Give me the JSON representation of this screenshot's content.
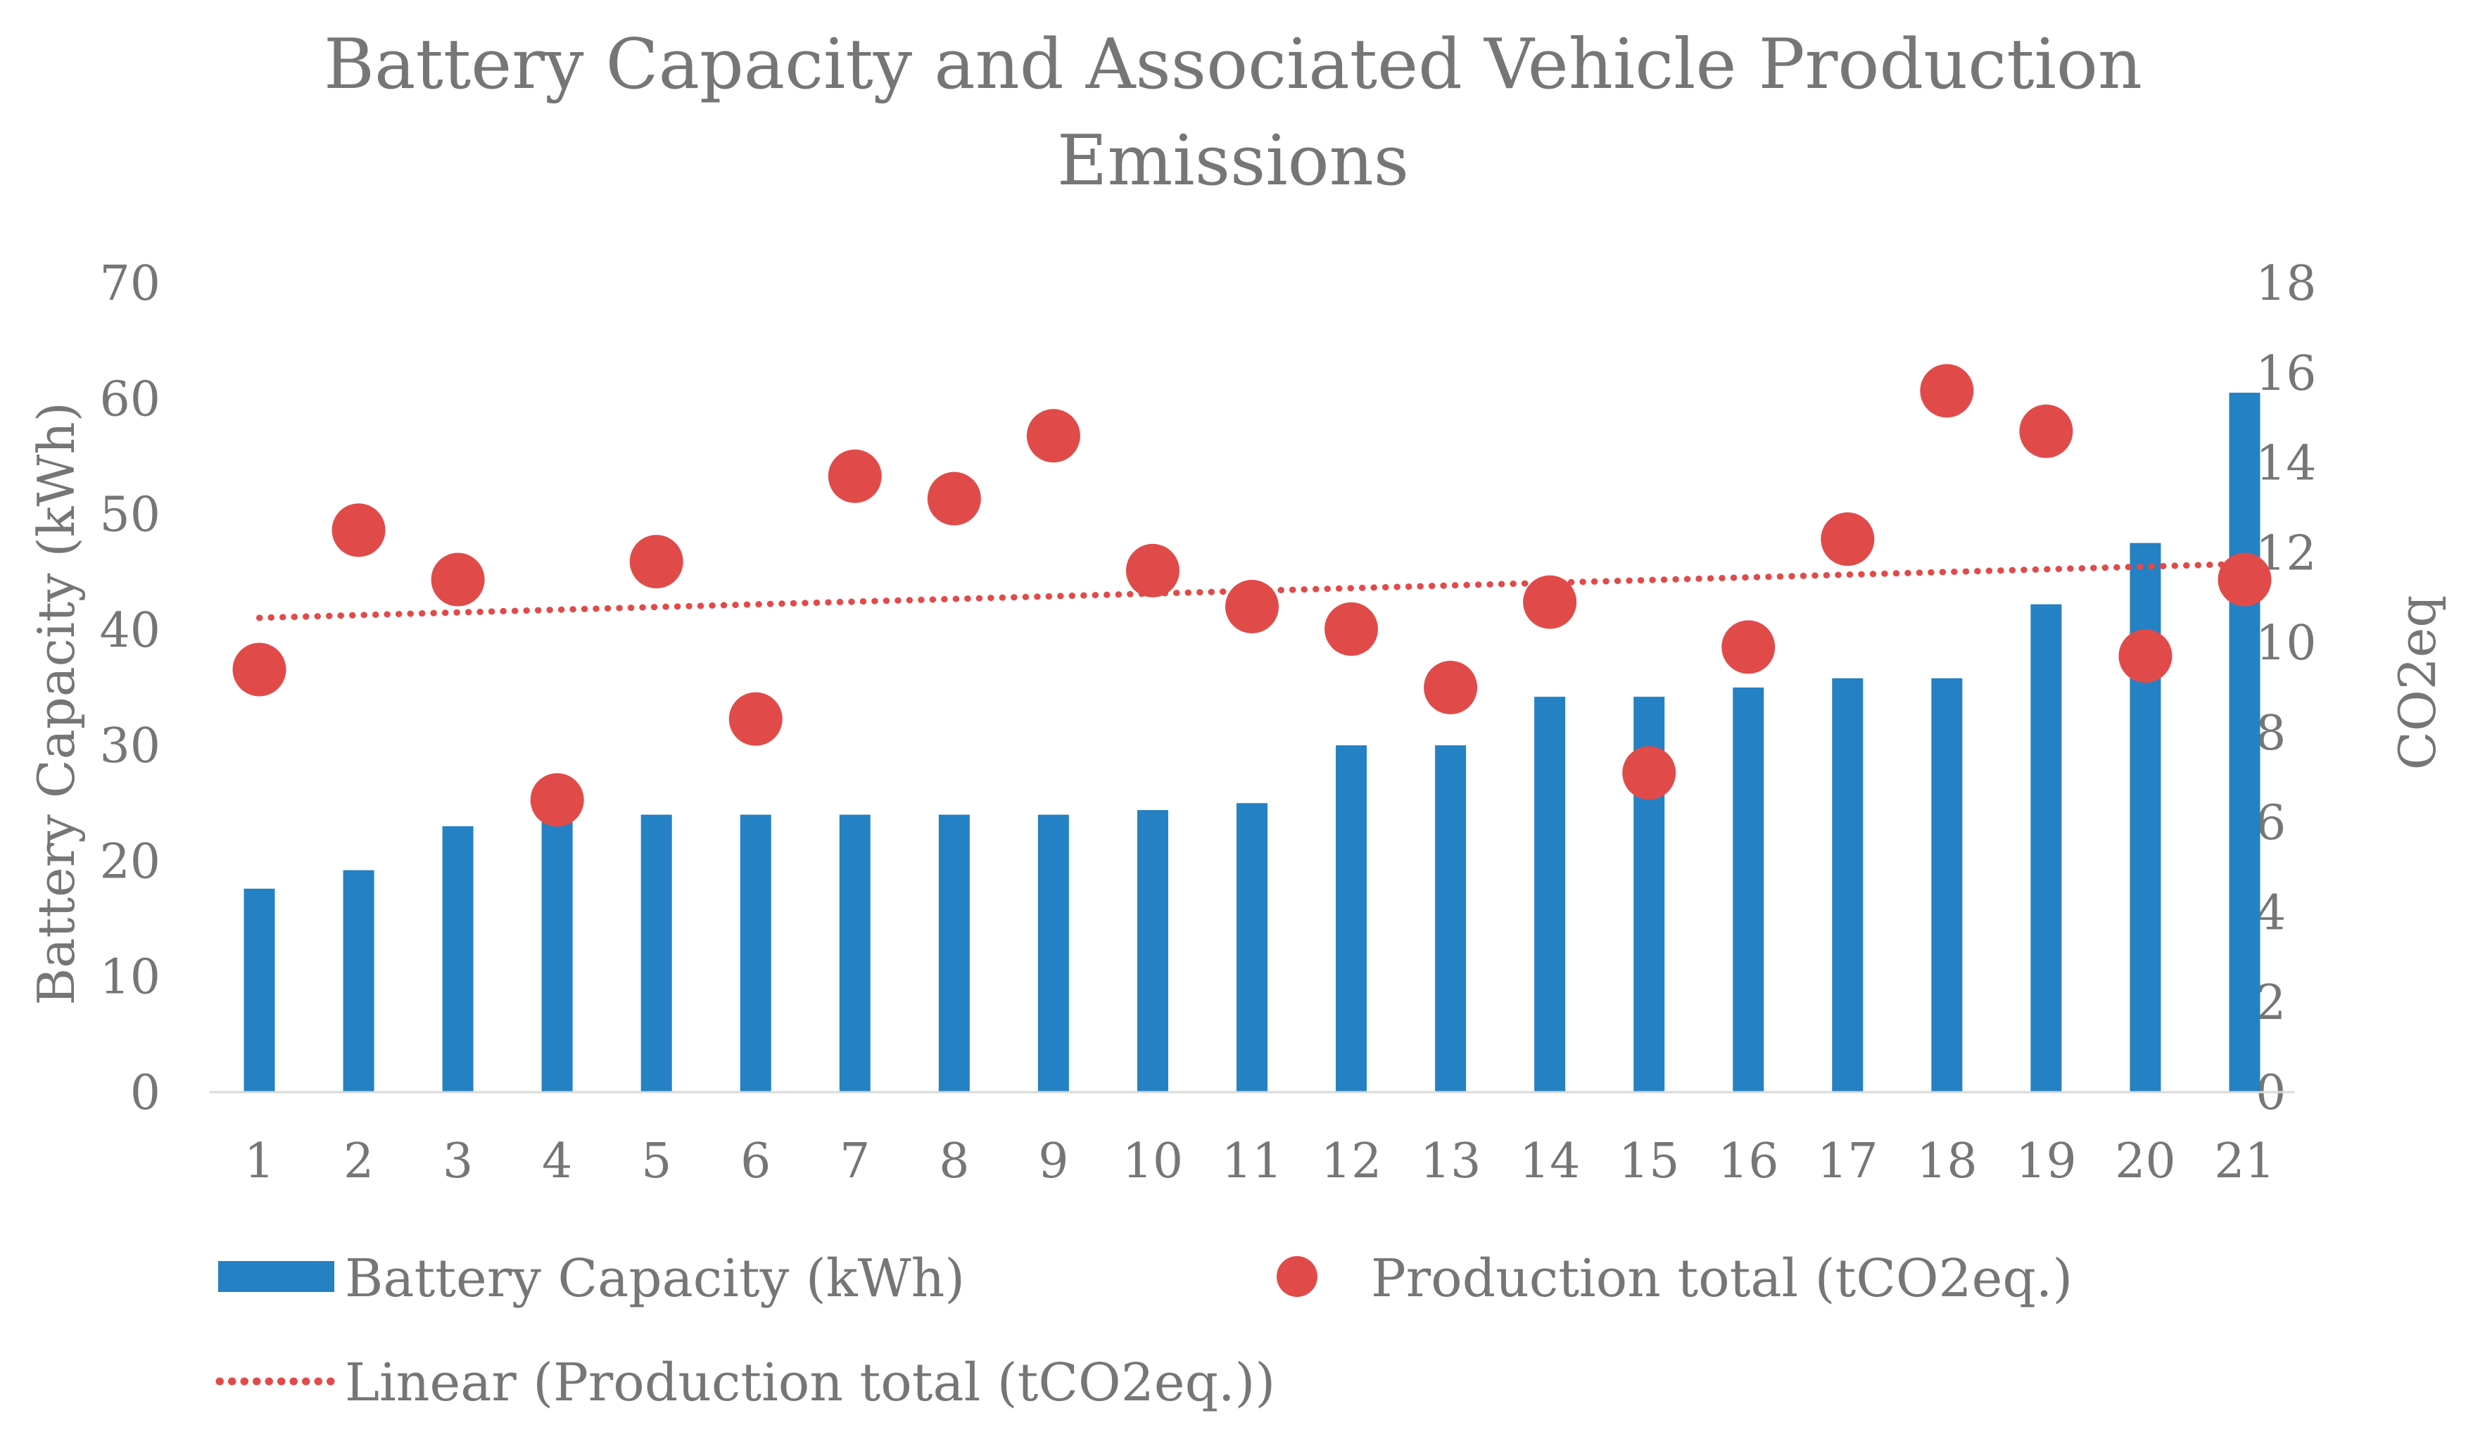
{
  "chart_data": {
    "type": "bar",
    "title": [
      "Battery Capacity and Associated Vehicle Production",
      "Emissions"
    ],
    "xlabel": "",
    "ylabel": "Battery Capacity (kWh)",
    "y2label": "CO2eq",
    "categories": [
      "1",
      "2",
      "3",
      "4",
      "5",
      "6",
      "7",
      "8",
      "9",
      "10",
      "11",
      "12",
      "13",
      "14",
      "15",
      "16",
      "17",
      "18",
      "19",
      "20",
      "21"
    ],
    "ylim": [
      0,
      70
    ],
    "y2lim": [
      0,
      18
    ],
    "yticks": [
      "0",
      "10",
      "20",
      "30",
      "40",
      "50",
      "60",
      "70"
    ],
    "y2ticks": [
      "0",
      "2",
      "4",
      "6",
      "8",
      "10",
      "12",
      "14",
      "16",
      "18"
    ],
    "series": [
      {
        "name": "Battery Capacity (kWh)",
        "type": "bar",
        "axis": "left",
        "color": "#2481C3",
        "values": [
          17.6,
          19.2,
          23,
          24,
          24,
          24,
          24,
          24,
          24,
          24.4,
          25,
          30,
          30,
          34.2,
          34.2,
          35,
          35.8,
          35.8,
          42.2,
          47.5,
          60.5
        ]
      },
      {
        "name": "Production total (tCO2eq.)",
        "type": "scatter",
        "axis": "right",
        "color": "#E04B4A",
        "values": [
          9.4,
          12.5,
          11.4,
          6.5,
          11.8,
          8.3,
          13.7,
          13.2,
          14.6,
          11.6,
          10.8,
          10.3,
          9.0,
          10.9,
          7.1,
          9.9,
          12.3,
          15.6,
          14.7,
          9.7,
          11.4
        ]
      },
      {
        "name": "Linear (Production total (tCO2eq.))",
        "type": "trendline",
        "axis": "right",
        "color": "#E04B4A",
        "start": 10.55,
        "end": 11.75
      }
    ],
    "legend": [
      "Battery Capacity (kWh)",
      "Production total (tCO2eq.)",
      "Linear (Production total (tCO2eq.))"
    ],
    "legend_position": "bottom",
    "grid": false
  }
}
